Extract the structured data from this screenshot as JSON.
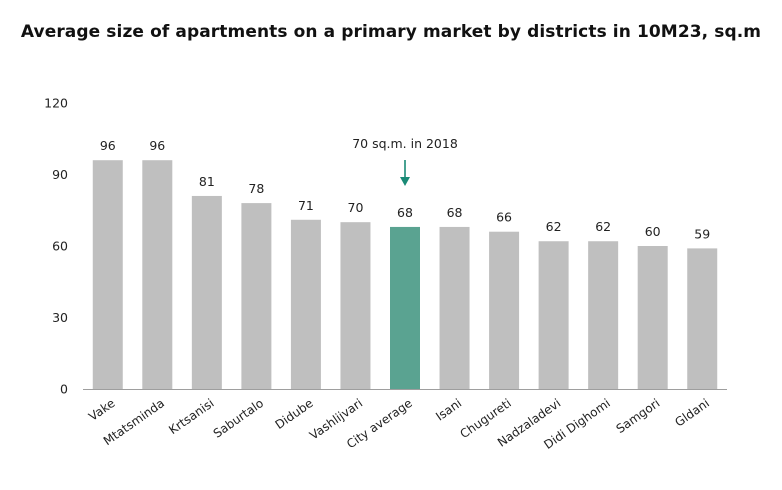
{
  "chart_data": {
    "type": "bar",
    "title": "Average size of apartments on a primary market by districts in 10M23, sq.m",
    "xlabel": "",
    "ylabel": "",
    "ylim": [
      0,
      120
    ],
    "yticks": [
      0,
      30,
      60,
      90,
      120
    ],
    "grid": false,
    "legend": "none",
    "categories": [
      "Vake",
      "Mtatsminda",
      "Krtsanisi",
      "Saburtalo",
      "Didube",
      "Vashlijvari",
      "City average",
      "Isani",
      "Chugureti",
      "Nadzaladevi",
      "Didi Dighomi",
      "Samgori",
      "Gldani"
    ],
    "values": [
      96,
      96,
      81,
      78,
      71,
      70,
      68,
      68,
      66,
      62,
      62,
      60,
      59
    ],
    "data_labels": [
      "96",
      "96",
      "81",
      "78",
      "71",
      "70",
      "68",
      "68",
      "66",
      "62",
      "62",
      "60",
      "59"
    ],
    "highlight_category": "City average",
    "colors": {
      "bar": "#bfbfbf",
      "highlight": "#5aa391",
      "annotation": "#1a8a76"
    },
    "annotation": {
      "text": "70 sq.m. in 2018",
      "target": "City average"
    }
  }
}
